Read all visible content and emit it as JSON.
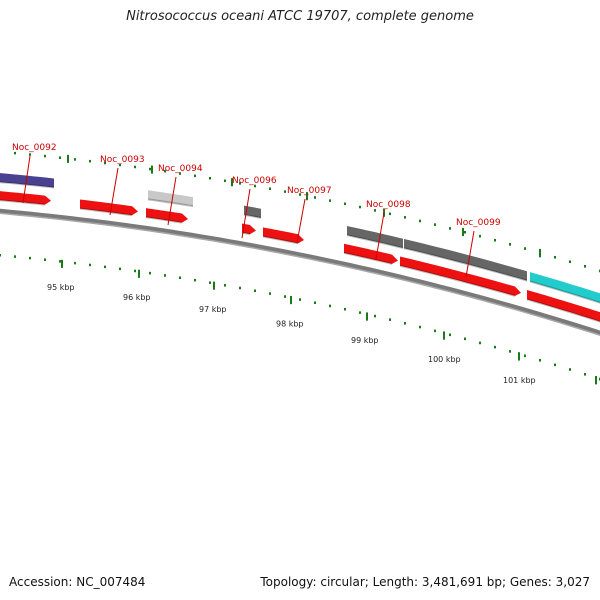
{
  "title": "Nitrosococcus oceani ATCC 19707, complete genome",
  "accession": "Accession: NC_007484",
  "topology": "Topology: circular; Length: 3,481,691 bp; Genes: 3,027",
  "colors": {
    "backbone": "#7a7a7a",
    "cds": "#ee1111",
    "tick": "#1a7a1a",
    "label": "#cc0000",
    "purple": "#4a4290",
    "gray_dark": "#666666",
    "gray_light": "#c8c8c8",
    "cyan": "#22cccc"
  },
  "scale_labels": [
    "95 kbp",
    "96 kbp",
    "97 kbp",
    "98 kbp",
    "99 kbp",
    "100 kbp",
    "101 kbp"
  ],
  "gene_labels": [
    "Noc_0092",
    "Noc_0093",
    "Noc_0094",
    "Noc_0096",
    "Noc_0097",
    "Noc_0098",
    "Noc_0099"
  ]
}
